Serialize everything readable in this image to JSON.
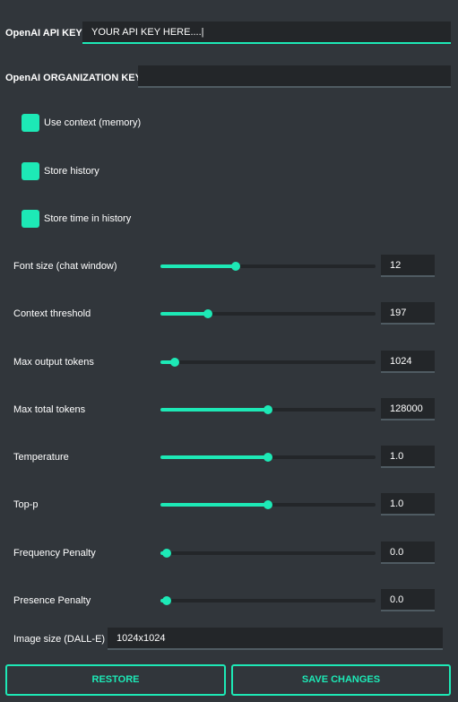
{
  "api_key": {
    "label": "OpenAI API KEY",
    "value": "YOUR API KEY HERE....|"
  },
  "org_key": {
    "label": "OpenAI ORGANIZATION KEY",
    "value": ""
  },
  "checkboxes": [
    {
      "label": "Use context (memory)",
      "checked": true
    },
    {
      "label": "Store history",
      "checked": true
    },
    {
      "label": "Store time in history",
      "checked": true
    }
  ],
  "sliders": [
    {
      "label": "Font size (chat window)",
      "value": "12",
      "fraction": 0.35
    },
    {
      "label": "Context threshold",
      "value": "197",
      "fraction": 0.22
    },
    {
      "label": "Max output tokens",
      "value": "1024",
      "fraction": 0.065
    },
    {
      "label": "Max total tokens",
      "value": "128000",
      "fraction": 0.5
    },
    {
      "label": "Temperature",
      "value": "1.0",
      "fraction": 0.5
    },
    {
      "label": "Top-p",
      "value": "1.0",
      "fraction": 0.5
    },
    {
      "label": "Frequency Penalty",
      "value": "0.0",
      "fraction": 0.03
    },
    {
      "label": "Presence Penalty",
      "value": "0.0",
      "fraction": 0.03
    }
  ],
  "image_size": {
    "label": "Image size (DALL-E)",
    "value": "1024x1024"
  },
  "buttons": {
    "restore": "RESTORE",
    "save": "SAVE CHANGES"
  },
  "colors": {
    "accent": "#1de9b6",
    "background": "#31363b",
    "input_bg": "#232629"
  }
}
